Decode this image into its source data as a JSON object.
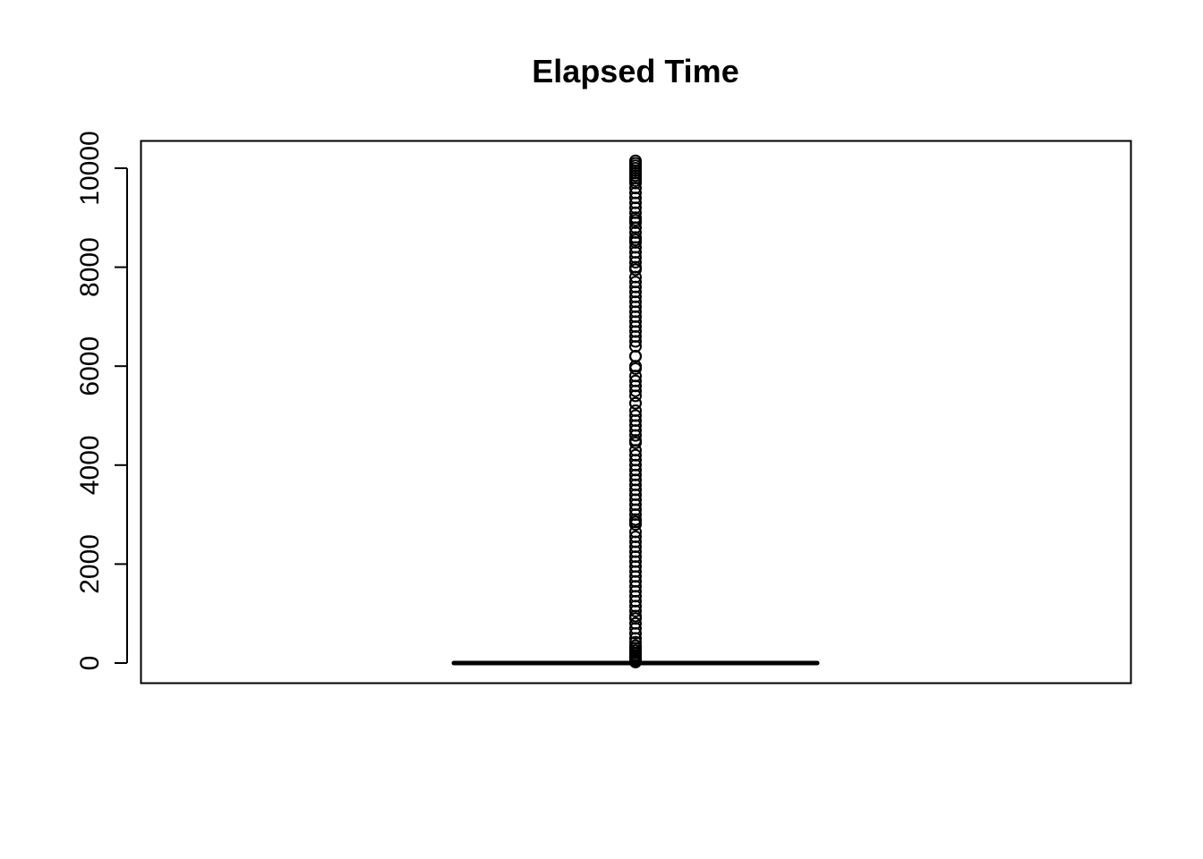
{
  "chart_data": {
    "type": "boxplot",
    "title": "Elapsed Time",
    "xlabel": "",
    "ylabel": "",
    "ylim": [
      -400,
      10600
    ],
    "y_ticks": [
      0,
      2000,
      4000,
      6000,
      8000,
      10000
    ],
    "y_tick_labels": [
      "0",
      "2000",
      "4000",
      "6000",
      "8000",
      "10000"
    ],
    "grid": false,
    "legend": "none",
    "box": {
      "min": 0,
      "q1": 0,
      "median": 0,
      "q3": 0,
      "whisker_low": 0,
      "whisker_high": 0
    },
    "outliers": [
      10150,
      10100,
      10050,
      10000,
      9950,
      9900,
      9850,
      9800,
      9750,
      9700,
      9600,
      9500,
      9400,
      9300,
      9200,
      9100,
      9000,
      8950,
      8900,
      8800,
      8700,
      8600,
      8550,
      8500,
      8400,
      8300,
      8200,
      8100,
      8000,
      7950,
      7800,
      7700,
      7600,
      7500,
      7400,
      7300,
      7200,
      7100,
      7000,
      6900,
      6800,
      6700,
      6600,
      6500,
      6400,
      6200,
      6200,
      6200,
      6000,
      5950,
      5800,
      5700,
      5600,
      5500,
      5400,
      5250,
      5250,
      5100,
      5000,
      4900,
      4800,
      4700,
      4600,
      4500,
      4450,
      4300,
      4200,
      4100,
      4000,
      3900,
      3800,
      3700,
      3600,
      3500,
      3400,
      3300,
      3200,
      3100,
      3000,
      2900,
      2850,
      2800,
      2650,
      2550,
      2450,
      2350,
      2250,
      2150,
      2050,
      1950,
      1850,
      1750,
      1650,
      1550,
      1450,
      1350,
      1250,
      1150,
      1050,
      950,
      900,
      800,
      700,
      600,
      500,
      420,
      350,
      300,
      250,
      200,
      160,
      120,
      90,
      60,
      40,
      20
    ],
    "colors": {
      "foreground": "#000000",
      "background": "#ffffff"
    }
  }
}
